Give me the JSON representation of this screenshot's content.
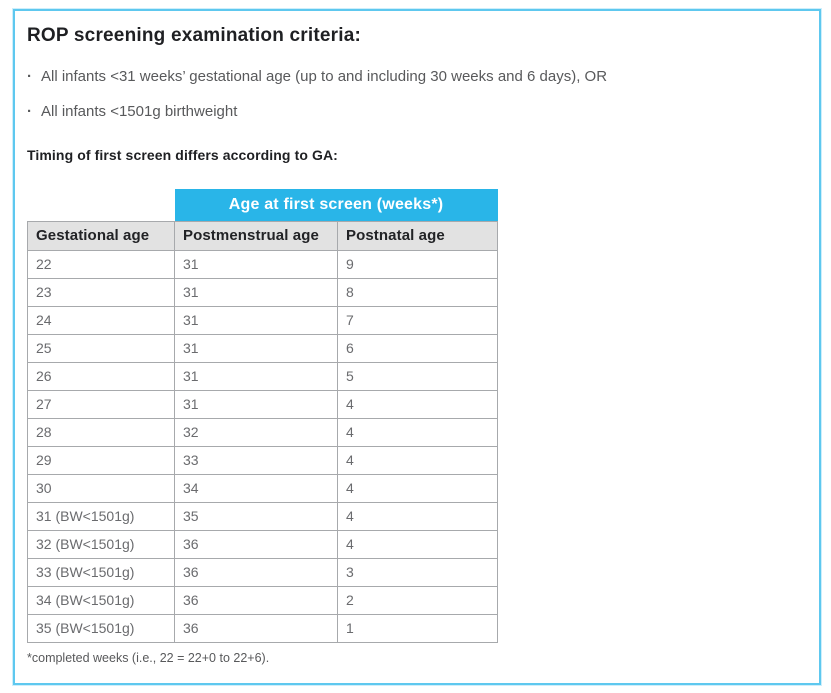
{
  "page": {
    "title": "ROP screening examination criteria:",
    "bullet_char": "·",
    "bullets": [
      "All infants <31 weeks’ gestational age (up to and including 30 weeks and 6 days), OR",
      "All infants <1501g birthweight"
    ],
    "subtitle": "Timing of first screen differs according to GA:",
    "footnote": "*completed weeks (i.e., 22 = 22+0 to 22+6)."
  },
  "table": {
    "span_header": "Age at first screen (weeks*)",
    "columns": [
      "Gestational age",
      "Postmenstrual age",
      "Postnatal age"
    ],
    "rows": [
      [
        "22",
        "31",
        "9"
      ],
      [
        "23",
        "31",
        "8"
      ],
      [
        "24",
        "31",
        "7"
      ],
      [
        "25",
        "31",
        "6"
      ],
      [
        "26",
        "31",
        "5"
      ],
      [
        "27",
        "31",
        "4"
      ],
      [
        "28",
        "32",
        "4"
      ],
      [
        "29",
        "33",
        "4"
      ],
      [
        "30",
        "34",
        "4"
      ],
      [
        "31 (BW<1501g)",
        "35",
        "4"
      ],
      [
        "32 (BW<1501g)",
        "36",
        "4"
      ],
      [
        "33 (BW<1501g)",
        "36",
        "3"
      ],
      [
        "34 (BW<1501g)",
        "36",
        "2"
      ],
      [
        "35 (BW<1501g)",
        "36",
        "1"
      ]
    ]
  },
  "colors": {
    "accent_cyan": "#29b5e8",
    "frame_border": "#5ec8ef",
    "header_gray": "#e2e2e2",
    "cell_border": "#a7a9ac",
    "body_text": "#58595b",
    "heading_text": "#1f2023"
  }
}
